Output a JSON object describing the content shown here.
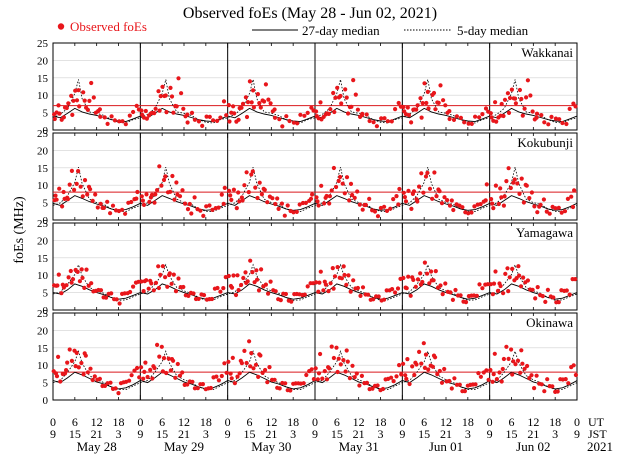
{
  "title": "Observed foEs (May 28 - Jun 02, 2021)",
  "legend": {
    "observed": "Observed foEs",
    "median27": "27-day median",
    "median5": "5-day median"
  },
  "ylabel": "foEs (MHz)",
  "xaxis": {
    "ut_label": "UT",
    "jst_label": "JST",
    "ut_ticks": [
      "0",
      "6",
      "12",
      "18",
      "0",
      "6",
      "12",
      "18",
      "0",
      "6",
      "12",
      "18",
      "0",
      "6",
      "12",
      "18",
      "0",
      "6",
      "12",
      "18",
      "0",
      "6",
      "12",
      "18",
      "0"
    ],
    "jst_ticks": [
      "9",
      "15",
      "21",
      "3",
      "9",
      "15",
      "21",
      "3",
      "9",
      "15",
      "21",
      "3",
      "9",
      "15",
      "21",
      "3",
      "9",
      "15",
      "21",
      "3",
      "9",
      "15",
      "21",
      "3",
      "9"
    ],
    "dates": [
      "May 28",
      "May 29",
      "May 30",
      "May 31",
      "Jun 01",
      "Jun 02"
    ],
    "year": "2021"
  },
  "colors": {
    "observed": "#e8161b",
    "threshold": "#d9191e",
    "median27": "#000000",
    "median5": "#000000",
    "grid": "#d0d0d0"
  },
  "chart_data": {
    "type": "scatter",
    "x_unit": "UT hours from 2021-05-28 00:00",
    "xlim": [
      0,
      144
    ],
    "ylim": [
      0,
      25
    ],
    "yticks": [
      0,
      5,
      10,
      15,
      20,
      25
    ],
    "grid": true,
    "legend_position": "top",
    "day_boundaries": [
      24,
      48,
      72,
      96,
      120
    ],
    "panels": [
      {
        "station": "Wakkanai",
        "threshold": 7.0,
        "median27": [
          [
            0,
            4.0
          ],
          [
            2,
            3.5
          ],
          [
            4,
            4.8
          ],
          [
            6,
            6.2
          ],
          [
            8,
            5.2
          ],
          [
            10,
            4.6
          ],
          [
            12,
            4.2
          ],
          [
            14,
            3.6
          ],
          [
            16,
            3.0
          ],
          [
            18,
            2.6
          ],
          [
            20,
            2.4
          ],
          [
            22,
            3.2
          ],
          [
            24,
            4.0
          ]
        ],
        "median5": [
          [
            0,
            3.5
          ],
          [
            2,
            4.5
          ],
          [
            4,
            6.2
          ],
          [
            6,
            10.5
          ],
          [
            7,
            14.5
          ],
          [
            8,
            9.0
          ],
          [
            10,
            5.2
          ],
          [
            12,
            4.8
          ],
          [
            14,
            4.2
          ],
          [
            16,
            3.0
          ],
          [
            18,
            2.2
          ],
          [
            20,
            2.0
          ],
          [
            22,
            3.0
          ],
          [
            24,
            3.5
          ]
        ],
        "observed": [
          [
            0.3,
            5.6
          ],
          [
            1.0,
            4.2
          ],
          [
            1.5,
            6.8
          ],
          [
            2.4,
            3.2
          ],
          [
            3.0,
            4.5
          ],
          [
            3.8,
            5.2
          ],
          [
            4.2,
            7.1
          ],
          [
            5.0,
            9.8
          ],
          [
            5.3,
            4.9
          ],
          [
            6.1,
            12.4
          ],
          [
            7.0,
            10.6
          ],
          [
            7.2,
            6.5
          ],
          [
            8.3,
            11.1
          ],
          [
            8.7,
            9.3
          ],
          [
            9.1,
            5.3
          ],
          [
            10.0,
            7.8
          ],
          [
            10.5,
            13.5
          ],
          [
            11.2,
            9.9
          ],
          [
            11.8,
            6.1
          ],
          [
            12.4,
            4.6
          ],
          [
            13.0,
            3.5
          ],
          [
            14.2,
            3.9
          ],
          [
            15.0,
            2.6
          ],
          [
            16.1,
            2.8
          ],
          [
            17.0,
            2.2
          ],
          [
            18.2,
            2.5
          ],
          [
            19.1,
            3.1
          ],
          [
            20.0,
            2.8
          ],
          [
            21.1,
            3.3
          ],
          [
            22.0,
            4.9
          ],
          [
            23.0,
            7.2
          ],
          [
            0.5,
            4.0
          ],
          [
            1.8,
            3.6
          ],
          [
            3.3,
            5.9
          ],
          [
            5.6,
            8.4
          ],
          [
            6.6,
            9.1
          ],
          [
            9.6,
            6.9
          ],
          [
            12.9,
            5.1
          ],
          [
            23.6,
            5.6
          ]
        ]
      },
      {
        "station": "Kokubunji",
        "threshold": 8.0,
        "median27": [
          [
            0,
            4.8
          ],
          [
            2,
            4.2
          ],
          [
            4,
            5.6
          ],
          [
            6,
            7.0
          ],
          [
            8,
            6.2
          ],
          [
            10,
            5.3
          ],
          [
            12,
            4.6
          ],
          [
            14,
            4.0
          ],
          [
            16,
            3.2
          ],
          [
            18,
            2.8
          ],
          [
            20,
            3.0
          ],
          [
            22,
            3.8
          ],
          [
            24,
            4.8
          ]
        ],
        "median5": [
          [
            0,
            4.2
          ],
          [
            2,
            4.9
          ],
          [
            4,
            7.0
          ],
          [
            6,
            10.8
          ],
          [
            7,
            15.2
          ],
          [
            8,
            10.5
          ],
          [
            10,
            6.0
          ],
          [
            12,
            5.0
          ],
          [
            14,
            4.5
          ],
          [
            16,
            3.2
          ],
          [
            18,
            2.5
          ],
          [
            20,
            2.4
          ],
          [
            22,
            3.4
          ],
          [
            24,
            4.2
          ]
        ],
        "observed": [
          [
            0.4,
            6.8
          ],
          [
            1.0,
            5.0
          ],
          [
            1.7,
            8.7
          ],
          [
            2.5,
            4.2
          ],
          [
            3.2,
            6.9
          ],
          [
            3.9,
            5.3
          ],
          [
            4.6,
            9.6
          ],
          [
            5.2,
            14.1
          ],
          [
            5.8,
            9.2
          ],
          [
            6.5,
            11.5
          ],
          [
            6.9,
            13.2
          ],
          [
            7.6,
            9.3
          ],
          [
            8.2,
            7.1
          ],
          [
            8.8,
            12.3
          ],
          [
            9.4,
            6.2
          ],
          [
            10.2,
            8.3
          ],
          [
            10.9,
            5.5
          ],
          [
            11.6,
            7.9
          ],
          [
            12.3,
            4.7
          ],
          [
            13.1,
            3.8
          ],
          [
            14.0,
            3.2
          ],
          [
            14.9,
            5.5
          ],
          [
            15.7,
            2.8
          ],
          [
            16.5,
            3.0
          ],
          [
            17.3,
            2.2
          ],
          [
            18.1,
            2.6
          ],
          [
            19.0,
            3.5
          ],
          [
            19.8,
            2.9
          ],
          [
            20.7,
            4.1
          ],
          [
            21.5,
            4.9
          ],
          [
            22.4,
            6.3
          ],
          [
            23.2,
            8.9
          ],
          [
            0.7,
            5.9
          ],
          [
            2.9,
            7.5
          ],
          [
            4.1,
            6.0
          ],
          [
            9.9,
            10.1
          ],
          [
            13.6,
            4.6
          ],
          [
            22.9,
            5.3
          ]
        ]
      },
      {
        "station": "Yamagawa",
        "threshold": null,
        "median27": [
          [
            0,
            5.0
          ],
          [
            2,
            4.6
          ],
          [
            4,
            5.8
          ],
          [
            6,
            7.5
          ],
          [
            8,
            6.8
          ],
          [
            10,
            5.8
          ],
          [
            12,
            5.0
          ],
          [
            14,
            4.4
          ],
          [
            16,
            3.6
          ],
          [
            18,
            3.1
          ],
          [
            20,
            3.4
          ],
          [
            22,
            4.2
          ],
          [
            24,
            5.0
          ]
        ],
        "median5": [
          [
            0,
            4.6
          ],
          [
            2,
            5.2
          ],
          [
            4,
            7.4
          ],
          [
            6,
            10.2
          ],
          [
            7,
            13.0
          ],
          [
            8,
            9.8
          ],
          [
            10,
            6.5
          ],
          [
            12,
            5.5
          ],
          [
            14,
            4.8
          ],
          [
            16,
            3.6
          ],
          [
            18,
            2.8
          ],
          [
            20,
            2.9
          ],
          [
            22,
            3.8
          ],
          [
            24,
            4.6
          ]
        ],
        "observed": [
          [
            0.3,
            8.2
          ],
          [
            0.9,
            6.1
          ],
          [
            1.6,
            9.9
          ],
          [
            2.3,
            5.1
          ],
          [
            3.0,
            7.3
          ],
          [
            3.7,
            6.0
          ],
          [
            4.3,
            8.8
          ],
          [
            4.9,
            11.2
          ],
          [
            5.5,
            9.4
          ],
          [
            6.2,
            12.6
          ],
          [
            6.8,
            10.1
          ],
          [
            7.4,
            8.0
          ],
          [
            8.1,
            9.5
          ],
          [
            8.6,
            7.2
          ],
          [
            9.2,
            10.5
          ],
          [
            9.8,
            6.4
          ],
          [
            10.5,
            7.7
          ],
          [
            11.1,
            5.9
          ],
          [
            11.8,
            6.6
          ],
          [
            12.5,
            4.9
          ],
          [
            13.2,
            5.4
          ],
          [
            13.9,
            3.9
          ],
          [
            14.6,
            4.4
          ],
          [
            15.3,
            3.5
          ],
          [
            16.0,
            4.2
          ],
          [
            16.8,
            3.1
          ],
          [
            17.5,
            3.6
          ],
          [
            18.3,
            3.0
          ],
          [
            19.0,
            3.8
          ],
          [
            19.7,
            4.5
          ],
          [
            20.5,
            5.1
          ],
          [
            21.2,
            6.0
          ],
          [
            22.0,
            5.6
          ],
          [
            22.8,
            7.3
          ],
          [
            23.5,
            8.1
          ],
          [
            1.2,
            7.6
          ],
          [
            2.7,
            8.4
          ],
          [
            5.1,
            7.0
          ],
          [
            7.9,
            11.4
          ]
        ]
      },
      {
        "station": "Okinawa",
        "threshold": 8.0,
        "median27": [
          [
            0,
            5.6
          ],
          [
            2,
            5.0
          ],
          [
            4,
            6.4
          ],
          [
            6,
            8.0
          ],
          [
            8,
            7.2
          ],
          [
            10,
            6.2
          ],
          [
            12,
            5.2
          ],
          [
            14,
            4.6
          ],
          [
            16,
            3.8
          ],
          [
            18,
            3.2
          ],
          [
            20,
            3.5
          ],
          [
            22,
            4.4
          ],
          [
            24,
            5.6
          ]
        ],
        "median5": [
          [
            0,
            5.0
          ],
          [
            2,
            5.6
          ],
          [
            4,
            8.0
          ],
          [
            6,
            11.0
          ],
          [
            7,
            14.0
          ],
          [
            8,
            10.6
          ],
          [
            10,
            7.0
          ],
          [
            12,
            5.8
          ],
          [
            14,
            5.0
          ],
          [
            16,
            3.8
          ],
          [
            18,
            3.0
          ],
          [
            20,
            3.0
          ],
          [
            22,
            4.0
          ],
          [
            24,
            5.0
          ]
        ],
        "observed": [
          [
            0.2,
            9.4
          ],
          [
            0.8,
            6.8
          ],
          [
            1.4,
            12.1
          ],
          [
            2.0,
            5.6
          ],
          [
            2.7,
            8.3
          ],
          [
            3.3,
            6.5
          ],
          [
            3.9,
            10.2
          ],
          [
            4.6,
            14.5
          ],
          [
            5.2,
            11.8
          ],
          [
            5.9,
            15.3
          ],
          [
            6.5,
            12.7
          ],
          [
            7.1,
            9.1
          ],
          [
            7.8,
            10.9
          ],
          [
            8.4,
            8.2
          ],
          [
            9.0,
            11.6
          ],
          [
            9.6,
            7.4
          ],
          [
            10.3,
            9.0
          ],
          [
            10.9,
            6.3
          ],
          [
            11.5,
            7.9
          ],
          [
            12.2,
            5.0
          ],
          [
            12.9,
            5.8
          ],
          [
            13.6,
            4.3
          ],
          [
            14.3,
            4.9
          ],
          [
            15.0,
            3.7
          ],
          [
            15.8,
            4.4
          ],
          [
            16.5,
            3.2
          ],
          [
            17.2,
            3.9
          ],
          [
            18.0,
            3.1
          ],
          [
            18.7,
            4.0
          ],
          [
            19.4,
            4.8
          ],
          [
            20.1,
            5.5
          ],
          [
            20.9,
            6.4
          ],
          [
            21.6,
            6.0
          ],
          [
            22.4,
            7.9
          ],
          [
            23.1,
            9.2
          ],
          [
            1.1,
            7.4
          ],
          [
            3.6,
            9.7
          ],
          [
            6.2,
            8.9
          ],
          [
            8.7,
            13.1
          ],
          [
            23.7,
            6.8
          ]
        ]
      }
    ]
  }
}
